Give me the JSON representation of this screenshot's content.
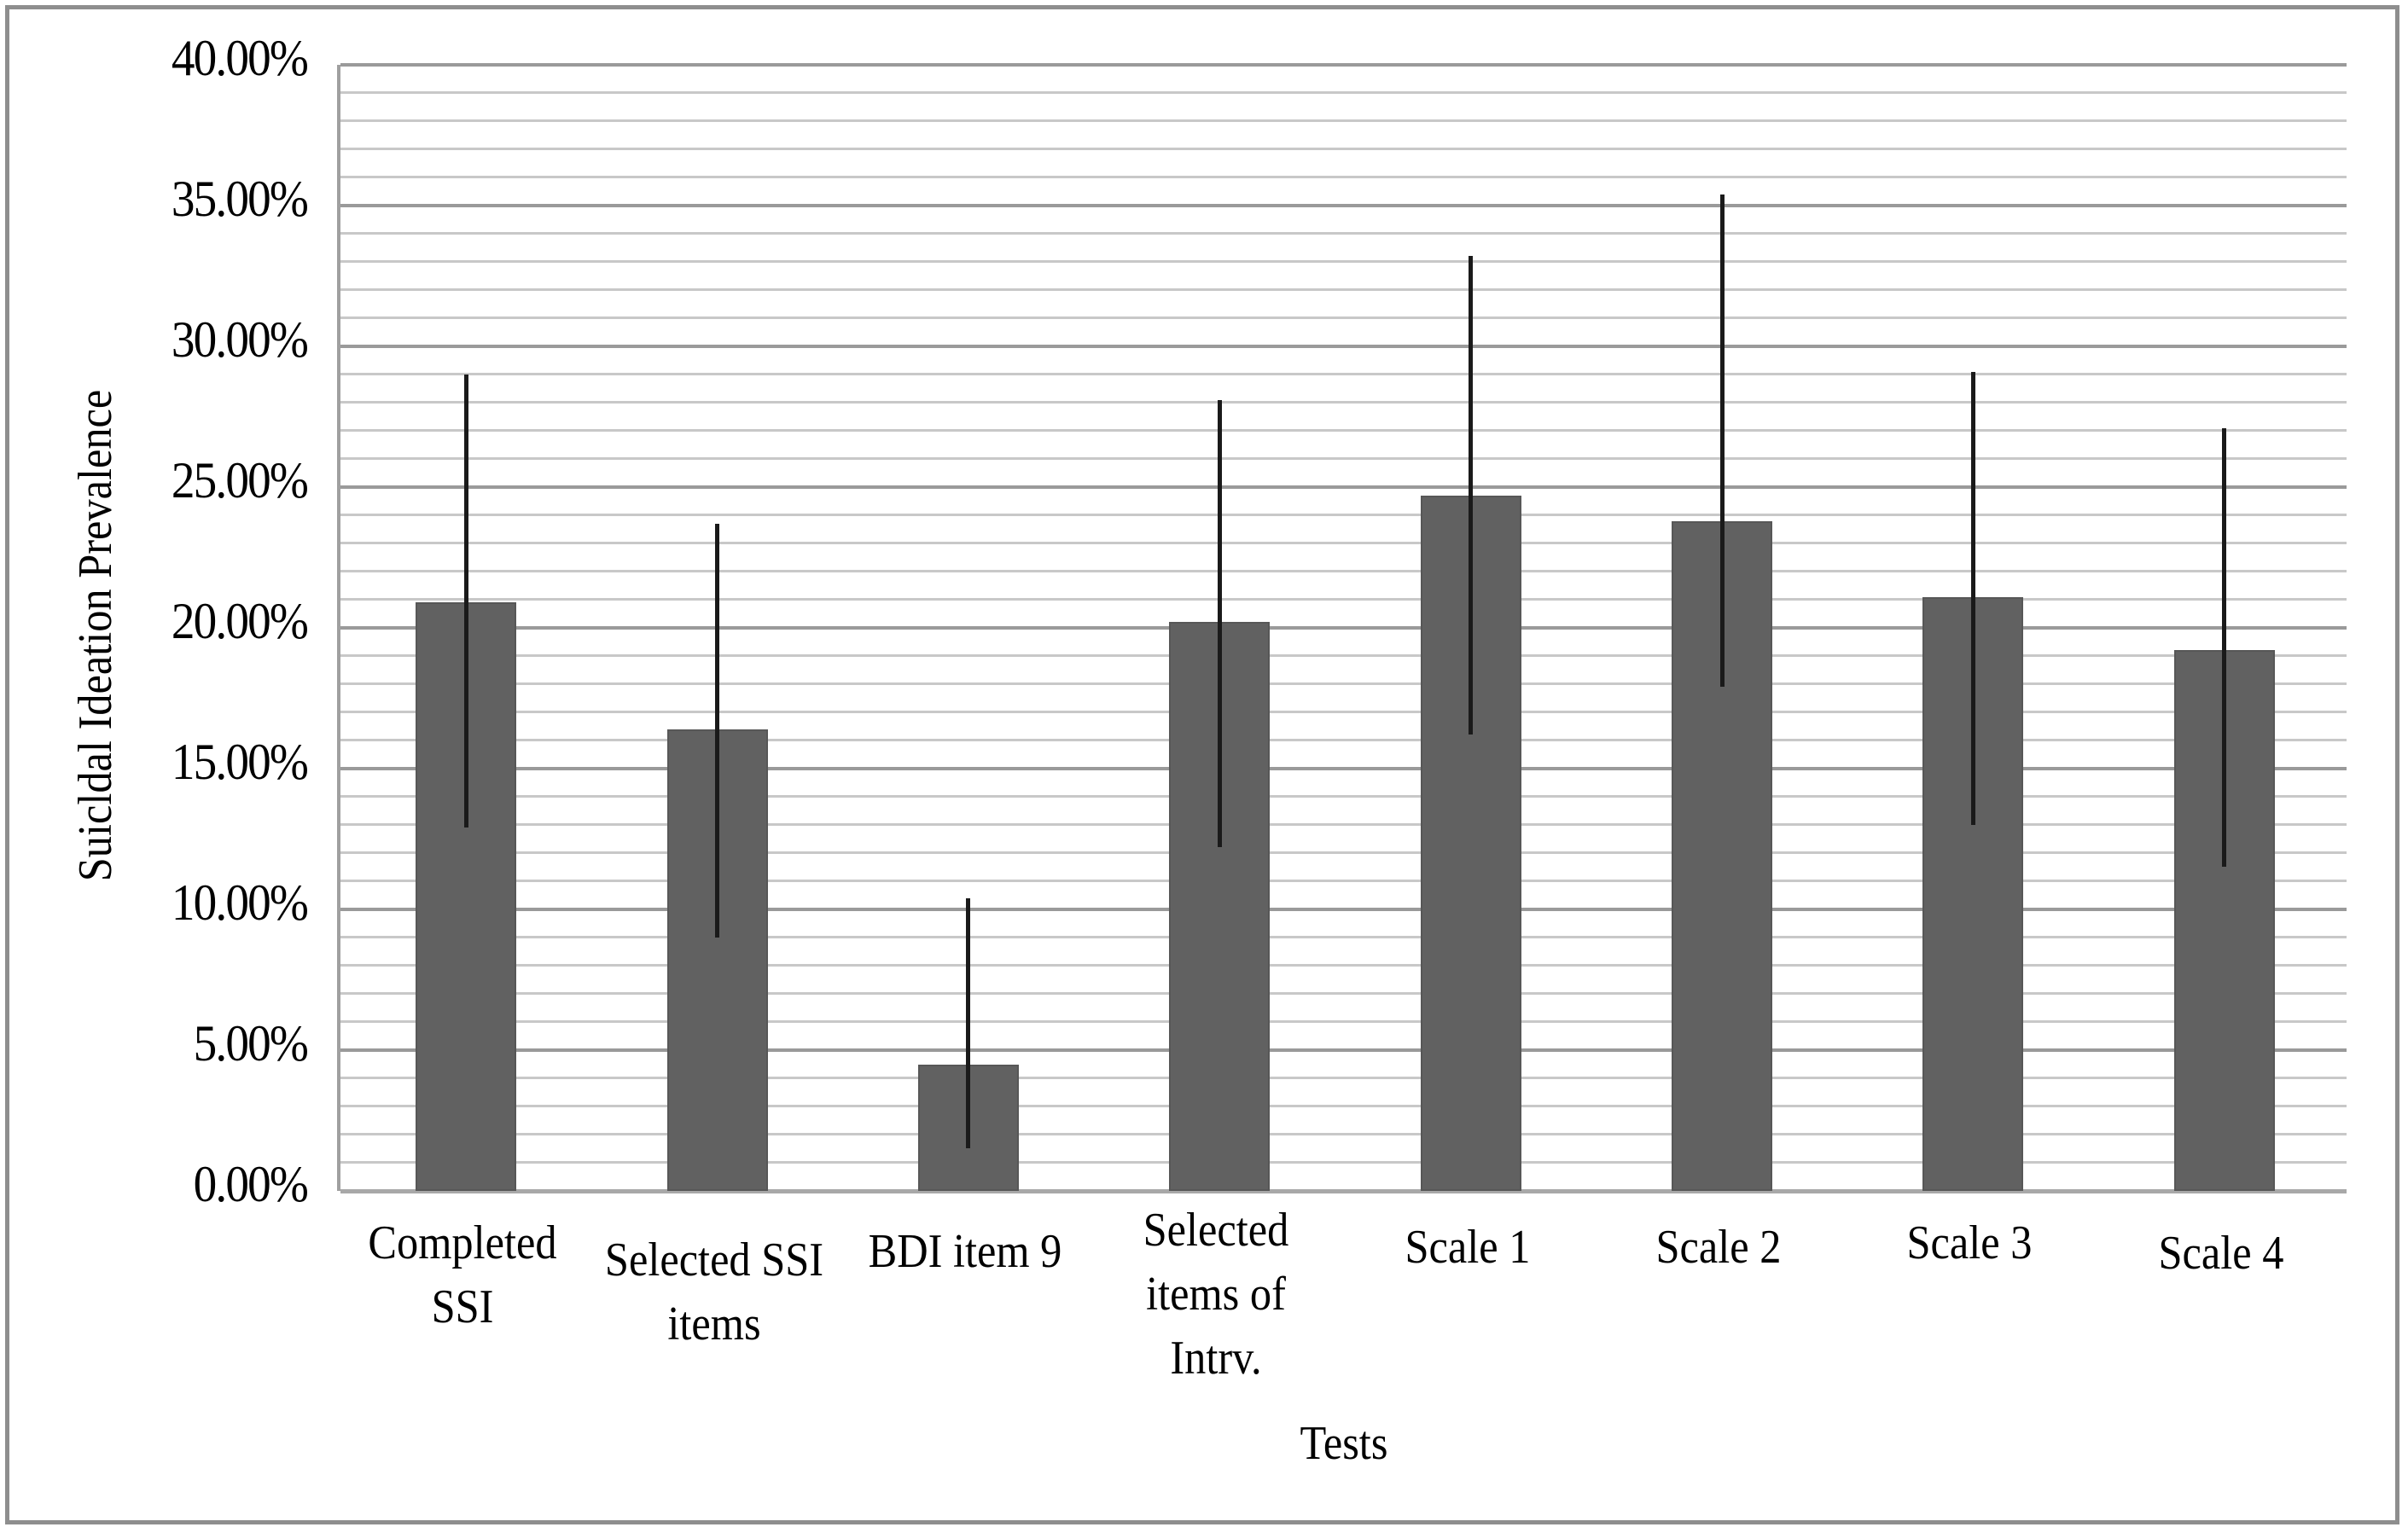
{
  "chart_data": {
    "type": "bar",
    "title": "",
    "xlabel": "Tests",
    "ylabel": "Suicldal Ideation Prevalence",
    "ylim": [
      0,
      40
    ],
    "grid": {
      "major_step": 5,
      "minor_step": 1,
      "on": true
    },
    "legend": null,
    "y_tick_labels": [
      "0.00%",
      "5.00%",
      "10.00%",
      "15.00%",
      "20.00%",
      "25.00%",
      "30.00%",
      "35.00%",
      "40.00%"
    ],
    "categories": [
      "Completed SSI",
      "Selected SSI items",
      "BDI item 9",
      "Selected items of Intrv.",
      "Scale 1",
      "Scale 2",
      "Scale 3",
      "Scale 4"
    ],
    "category_lines": [
      [
        "Completed",
        "SSI"
      ],
      [
        "Selected SSI",
        "items"
      ],
      [
        "BDI item 9"
      ],
      [
        "Selected",
        "items of",
        "Intrv."
      ],
      [
        "Scale 1"
      ],
      [
        "Scale 2"
      ],
      [
        "Scale 3"
      ],
      [
        "Scale 4"
      ]
    ],
    "values": [
      20.9,
      16.4,
      4.5,
      20.2,
      24.7,
      23.8,
      21.1,
      19.2
    ],
    "error_low": [
      12.9,
      9.0,
      1.5,
      12.2,
      16.2,
      17.9,
      13.0,
      11.5
    ],
    "error_high": [
      29.0,
      23.7,
      10.4,
      28.1,
      33.2,
      35.4,
      29.1,
      27.1
    ],
    "units": "%",
    "colors": {
      "bar": "#616161",
      "error_bar": "#1a1a1a",
      "grid_major": "#9a9a9a",
      "grid_minor": "#c8c8c8",
      "frame": "#8e8e8e"
    }
  }
}
